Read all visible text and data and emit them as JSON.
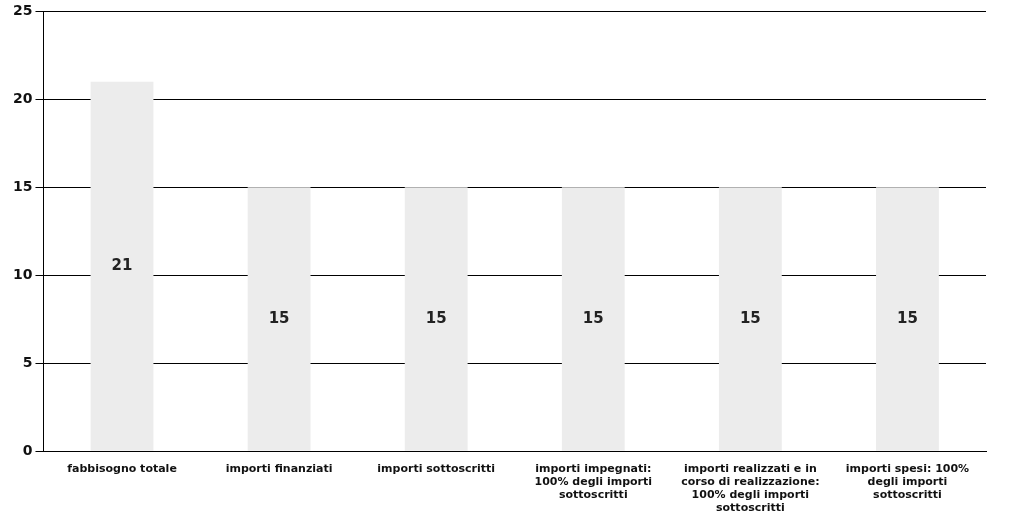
{
  "chart_data": {
    "type": "bar",
    "categories": [
      "fabbisogno totale",
      "importi finanziati",
      "importi sottoscritti",
      "importi impegnati: 100% degli importi sottoscritti",
      "importi realizzati e in corso di realizzazione: 100% degli importi sottoscritti",
      "importi spesi: 100% degli importi sottoscritti"
    ],
    "values": [
      21,
      15,
      15,
      15,
      15,
      15
    ],
    "color": "#ececec",
    "ylim": [
      0,
      25
    ],
    "yticks": [
      0,
      5,
      10,
      15,
      20,
      25
    ],
    "grid": "y",
    "data_labels": true,
    "legend": false
  }
}
